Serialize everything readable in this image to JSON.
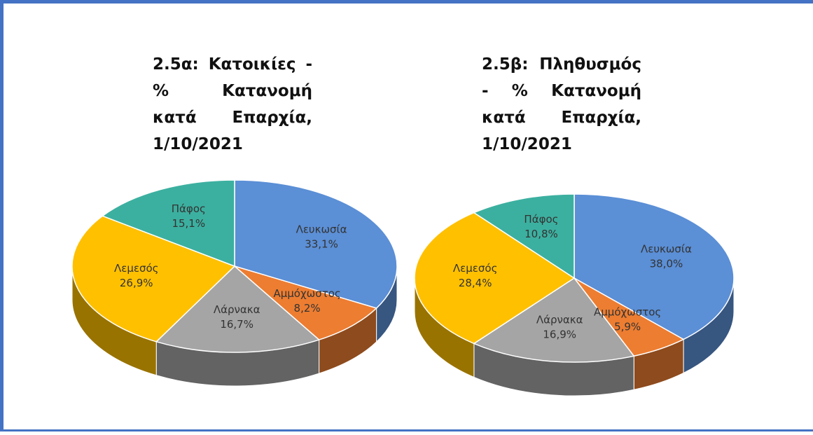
{
  "chart_data": [
    {
      "type": "pie",
      "title": "2.5α: Κατοικίες - % Κατανομή κατά Επαρχία, 1/10/2021",
      "categories": [
        "Λευκωσία",
        "Αμμόχωστος",
        "Λάρνακα",
        "Λεμεσός",
        "Πάφος"
      ],
      "values": [
        33.1,
        8.2,
        16.7,
        26.9,
        15.1
      ],
      "value_labels": [
        "33,1%",
        "8,2%",
        "16,7%",
        "26,9%",
        "15,1%"
      ],
      "colors": [
        "#5b8fd6",
        "#ed7d31",
        "#a5a5a5",
        "#ffc000",
        "#3cb0a0"
      ]
    },
    {
      "type": "pie",
      "title": "2.5β: Πληθυσμός - % Κατανομή κατά Επαρχία, 1/10/2021",
      "categories": [
        "Λευκωσία",
        "Αμμόχωστος",
        "Λάρνακα",
        "Λεμεσός",
        "Πάφος"
      ],
      "values": [
        38.0,
        5.9,
        16.9,
        28.4,
        10.8
      ],
      "value_labels": [
        "38,0%",
        "5,9%",
        "16,9%",
        "28,4%",
        "10,8%"
      ],
      "colors": [
        "#5b8fd6",
        "#ed7d31",
        "#a5a5a5",
        "#ffc000",
        "#3cb0a0"
      ]
    }
  ]
}
